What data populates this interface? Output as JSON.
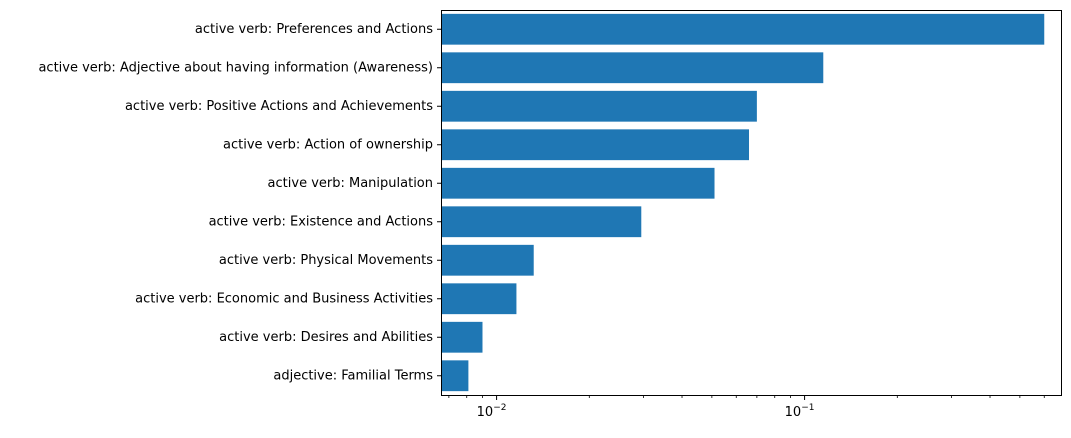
{
  "chart_data": {
    "type": "bar",
    "orientation": "horizontal",
    "categories": [
      "active verb: Preferences and Actions",
      "active verb: Adjective about having information (Awareness)",
      "active verb: Positive Actions and Achievements",
      "active verb: Action of ownership",
      "active verb: Manipulation",
      "active verb: Existence and Actions",
      "active verb: Physical Movements",
      "active verb: Economic and Business Activities",
      "active verb: Desires and Abilities",
      "adjective: Familial Terms"
    ],
    "values": [
      0.6,
      0.115,
      0.07,
      0.066,
      0.051,
      0.0295,
      0.0132,
      0.0116,
      0.009,
      0.0081
    ],
    "x_scale": "log",
    "xlim": [
      0.0066,
      0.68
    ],
    "x_ticks": [
      {
        "value": 0.01,
        "base": "10",
        "exp": "−2"
      },
      {
        "value": 0.1,
        "base": "10",
        "exp": "−1"
      }
    ],
    "bar_color": "#1f77b4",
    "title": "",
    "xlabel": "",
    "ylabel": "",
    "grid": false
  }
}
